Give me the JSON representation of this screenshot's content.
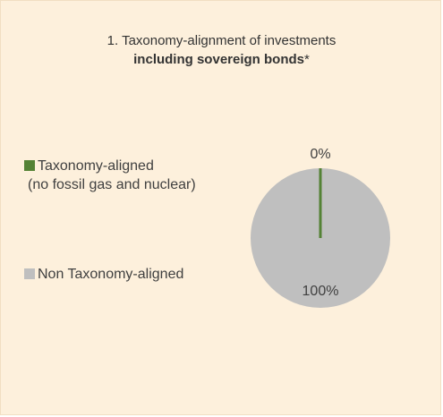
{
  "colors": {
    "panel_background": "#fdf0dc",
    "aligned": "#548235",
    "non_aligned": "#bfbfbf"
  },
  "chart_data": {
    "type": "pie",
    "title_line1": "1. Taxonomy-alignment of investments",
    "title_line2_bold": "including sovereign bonds",
    "title_line2_suffix": "*",
    "series": [
      {
        "name": "Taxonomy-aligned",
        "name_line2": "(no fossil gas and nuclear)",
        "value": 0,
        "label": "0%",
        "color": "#548235"
      },
      {
        "name": "Non Taxonomy-aligned",
        "value": 100,
        "label": "100%",
        "color": "#bfbfbf"
      }
    ],
    "legend_position": "left"
  }
}
